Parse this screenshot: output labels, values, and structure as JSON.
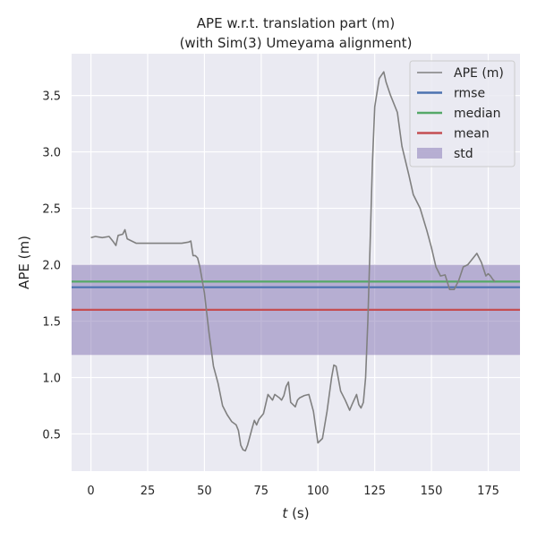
{
  "chart_data": {
    "type": "line",
    "title": "APE w.r.t. translation part (m)",
    "subtitle": "(with Sim(3) Umeyama alignment)",
    "xlabel_italic": "t",
    "xlabel_unit": " (s)",
    "ylabel": "APE (m)",
    "xlim": [
      -8.5,
      189
    ],
    "ylim": [
      0.17,
      3.87
    ],
    "xticks": [
      0,
      25,
      50,
      75,
      100,
      125,
      150,
      175
    ],
    "yticks": [
      0.5,
      1.0,
      1.5,
      2.0,
      2.5,
      3.0,
      3.5
    ],
    "ytick_labels": [
      "0.5",
      "1.0",
      "1.5",
      "2.0",
      "2.5",
      "3.0",
      "3.5"
    ],
    "grid": true,
    "legend_position": "upper-right",
    "series": [
      {
        "name": "APE (m)",
        "color": "#808080",
        "x": [
          0,
          2,
          5,
          8,
          10,
          11,
          12,
          14,
          15,
          16,
          18,
          20,
          25,
          30,
          35,
          40,
          43,
          44,
          45,
          46,
          47,
          48,
          50,
          52,
          54,
          56,
          58,
          60,
          62,
          64,
          65,
          66,
          67,
          68,
          69,
          71,
          72,
          73,
          74,
          76,
          78,
          80,
          81,
          83,
          84,
          85,
          86,
          87,
          88,
          90,
          91,
          92,
          94,
          96,
          98,
          100,
          102,
          104,
          106,
          107,
          108,
          110,
          112,
          114,
          115,
          117,
          118,
          119,
          120,
          121,
          122,
          123,
          124,
          125,
          127,
          129,
          130,
          132,
          135,
          137,
          140,
          142,
          145,
          148,
          150,
          152,
          154,
          156,
          158,
          160,
          162,
          164,
          166,
          168,
          170,
          172,
          174,
          175,
          176,
          177,
          178
        ],
        "y": [
          2.24,
          2.25,
          2.24,
          2.25,
          2.2,
          2.17,
          2.26,
          2.27,
          2.31,
          2.23,
          2.21,
          2.19,
          2.19,
          2.19,
          2.19,
          2.19,
          2.2,
          2.21,
          2.08,
          2.08,
          2.06,
          1.98,
          1.75,
          1.4,
          1.1,
          0.95,
          0.75,
          0.67,
          0.61,
          0.58,
          0.53,
          0.4,
          0.36,
          0.35,
          0.4,
          0.55,
          0.62,
          0.58,
          0.63,
          0.68,
          0.85,
          0.8,
          0.85,
          0.82,
          0.8,
          0.84,
          0.92,
          0.96,
          0.78,
          0.74,
          0.8,
          0.82,
          0.84,
          0.85,
          0.7,
          0.42,
          0.46,
          0.7,
          1.0,
          1.11,
          1.1,
          0.88,
          0.8,
          0.71,
          0.76,
          0.85,
          0.76,
          0.73,
          0.78,
          1.0,
          1.5,
          2.2,
          2.9,
          3.4,
          3.65,
          3.71,
          3.62,
          3.5,
          3.35,
          3.05,
          2.8,
          2.62,
          2.5,
          2.3,
          2.15,
          1.98,
          1.9,
          1.91,
          1.78,
          1.78,
          1.86,
          1.98,
          2.0,
          2.05,
          2.1,
          2.02,
          1.9,
          1.92,
          1.9,
          1.87,
          1.85
        ]
      },
      {
        "name": "rmse",
        "color": "#4c72b0",
        "value": 1.8
      },
      {
        "name": "median",
        "color": "#55a868",
        "value": 1.85
      },
      {
        "name": "mean",
        "color": "#c44e52",
        "value": 1.6
      },
      {
        "name": "std",
        "color": "#8172b2",
        "range": [
          1.2,
          2.0
        ]
      }
    ]
  }
}
